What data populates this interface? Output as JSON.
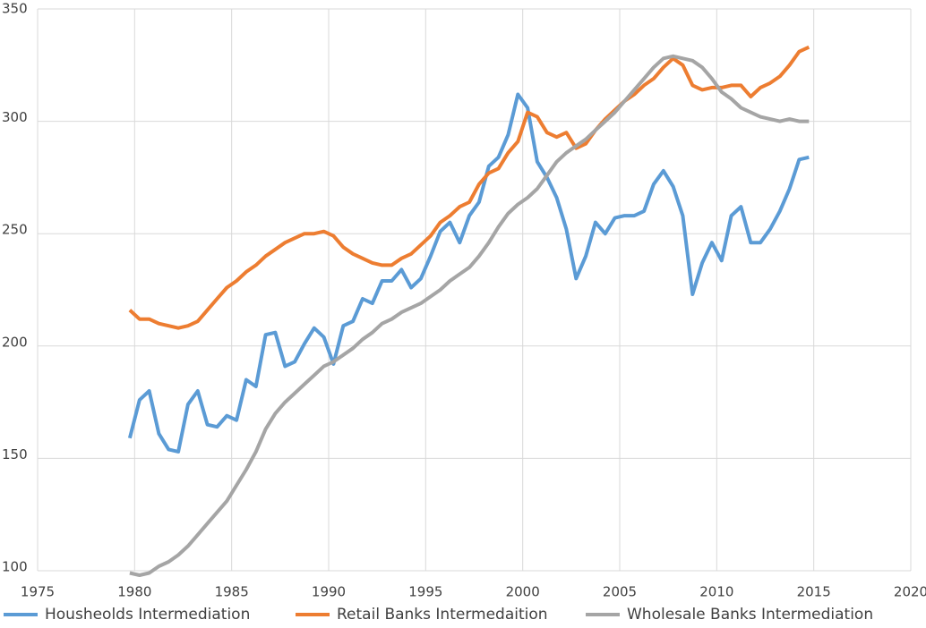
{
  "chart_data": {
    "type": "line",
    "x": [
      1979.75,
      1980.25,
      1980.75,
      1981.25,
      1981.75,
      1982.25,
      1982.75,
      1983.25,
      1983.75,
      1984.25,
      1984.75,
      1985.25,
      1985.75,
      1986.25,
      1986.75,
      1987.25,
      1987.75,
      1988.25,
      1988.75,
      1989.25,
      1989.75,
      1990.25,
      1990.75,
      1991.25,
      1991.75,
      1992.25,
      1992.75,
      1993.25,
      1993.75,
      1994.25,
      1994.75,
      1995.25,
      1995.75,
      1996.25,
      1996.75,
      1997.25,
      1997.75,
      1998.25,
      1998.75,
      1999.25,
      1999.75,
      2000.25,
      2000.75,
      2001.25,
      2001.75,
      2002.25,
      2002.75,
      2003.25,
      2003.75,
      2004.25,
      2004.75,
      2005.25,
      2005.75,
      2006.25,
      2006.75,
      2007.25,
      2007.75,
      2008.25,
      2008.75,
      2009.25,
      2009.75,
      2010.25,
      2010.75,
      2011.25,
      2011.75,
      2012.25,
      2012.75,
      2013.25,
      2013.75,
      2014.25,
      2014.75
    ],
    "series": [
      {
        "name": "Housheolds Intermediation",
        "color": "#5b9bd5",
        "values": [
          159,
          176,
          180,
          161,
          154,
          153,
          174,
          180,
          165,
          164,
          169,
          167,
          185,
          182,
          205,
          206,
          191,
          193,
          201,
          208,
          204,
          192,
          209,
          211,
          221,
          219,
          229,
          229,
          234,
          226,
          230,
          240,
          251,
          255,
          246,
          258,
          264,
          280,
          284,
          294,
          312,
          306,
          282,
          275,
          266,
          252,
          230,
          240,
          255,
          250,
          257,
          258,
          258,
          260,
          272,
          278,
          271,
          258,
          223,
          237,
          246,
          238,
          258,
          262,
          246,
          246,
          252,
          260,
          270,
          283,
          284
        ]
      },
      {
        "name": "Retail Banks Intermedaition",
        "color": "#ed7d31",
        "values": [
          216,
          212,
          212,
          210,
          209,
          208,
          209,
          211,
          216,
          221,
          226,
          229,
          233,
          236,
          240,
          243,
          246,
          248,
          250,
          250,
          251,
          249,
          244,
          241,
          239,
          237,
          236,
          236,
          239,
          241,
          245,
          249,
          255,
          258,
          262,
          264,
          272,
          277,
          279,
          286,
          291,
          304,
          302,
          295,
          293,
          295,
          288,
          290,
          296,
          301,
          305,
          309,
          312,
          316,
          319,
          324,
          328,
          325,
          316,
          314,
          315,
          315,
          316,
          316,
          311,
          315,
          317,
          320,
          325,
          331,
          333
        ]
      },
      {
        "name": "Wholesale Banks Intermediation",
        "color": "#a5a5a5",
        "values": [
          99,
          98,
          99,
          102,
          104,
          107,
          111,
          116,
          121,
          126,
          131,
          138,
          145,
          153,
          163,
          170,
          175,
          179,
          183,
          187,
          191,
          193,
          196,
          199,
          203,
          206,
          210,
          212,
          215,
          217,
          219,
          222,
          225,
          229,
          232,
          235,
          240,
          246,
          253,
          259,
          263,
          266,
          270,
          276,
          282,
          286,
          289,
          292,
          296,
          300,
          304,
          309,
          314,
          319,
          324,
          328,
          329,
          328,
          327,
          324,
          319,
          313,
          310,
          306,
          304,
          302,
          301,
          300,
          301,
          300,
          300
        ]
      }
    ],
    "xlim": [
      1975,
      2020
    ],
    "xticks": [
      1975,
      1980,
      1985,
      1990,
      1995,
      2000,
      2005,
      2010,
      2015,
      2020
    ],
    "ylim": [
      100,
      350
    ],
    "yticks": [
      100,
      150,
      200,
      250,
      300,
      350
    ],
    "grid": true,
    "legend": "bottom"
  }
}
